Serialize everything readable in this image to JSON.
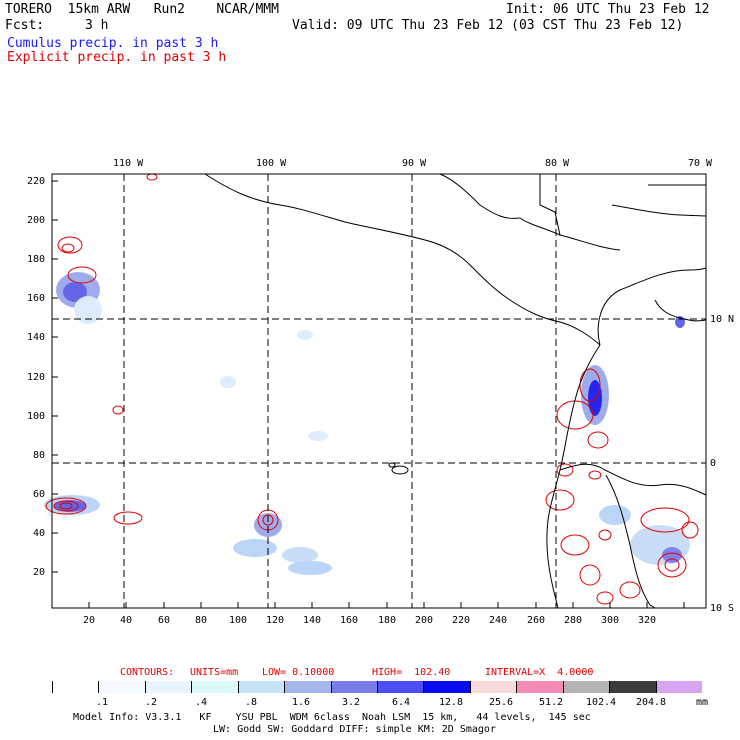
{
  "header": {
    "line1_left": "TORERO  15km ARW   Run2    NCAR/MMM",
    "init": "Init: 06 UTC Thu 23 Feb 12",
    "fcst_label": "Fcst:",
    "fcst_value": "3 h",
    "valid": "Valid: 09 UTC Thu 23 Feb 12 (03 CST Thu 23 Feb 12)",
    "cumulus": "Cumulus precip. in past 3 h",
    "explicit": "Explicit precip. in past 3 h"
  },
  "map": {
    "lon_labels": [
      "110 W",
      "100 W",
      "90 W",
      "80 W",
      "70 W"
    ],
    "lat_labels": [
      "10 N",
      "0",
      "10 S"
    ],
    "y_ticks": [
      "220",
      "200",
      "180",
      "160",
      "140",
      "120",
      "100",
      "80",
      "60",
      "40",
      "20"
    ],
    "x_ticks": [
      "20",
      "40",
      "60",
      "80",
      "100",
      "120",
      "140",
      "160",
      "180",
      "200",
      "220",
      "240",
      "260",
      "280",
      "300",
      "320"
    ],
    "coast_color": "#000000",
    "explicit_color": "#e00000",
    "cumulus_colors": [
      "#dcebfb",
      "#b7d3f7",
      "#9aa8ec",
      "#5c5ee6",
      "#1a1aef"
    ]
  },
  "contours_info": {
    "label": "CONTOURS:",
    "units": "UNITS=mm",
    "low": "LOW= 0.10000",
    "high": "HIGH=  102.40",
    "interval": "INTERVAL=X  4.0000"
  },
  "colorbar": {
    "labels": [
      ".1",
      ".2",
      ".4",
      ".8",
      "1.6",
      "3.2",
      "6.4",
      "12.8",
      "25.6",
      "51.2",
      "102.4",
      "204.8"
    ],
    "unit": "mm",
    "colors": [
      "#ffffff",
      "#f4faff",
      "#e8f4fe",
      "#dcf8f8",
      "#c6e2f6",
      "#a6b4ec",
      "#7a7cea",
      "#4b4ef4",
      "#0b0bef",
      "#f8dada",
      "#f58ab4",
      "#b4b4b4",
      "#3c3c3c",
      "#d8a4f4"
    ]
  },
  "footer": {
    "line1": "Model Info: V3.3.1   KF    YSU PBL  WDM 6class  Noah LSM  15 km,   44 levels,  145 sec",
    "line2": "LW: Godd SW: Goddard DIFF: simple KM: 2D Smagor"
  }
}
